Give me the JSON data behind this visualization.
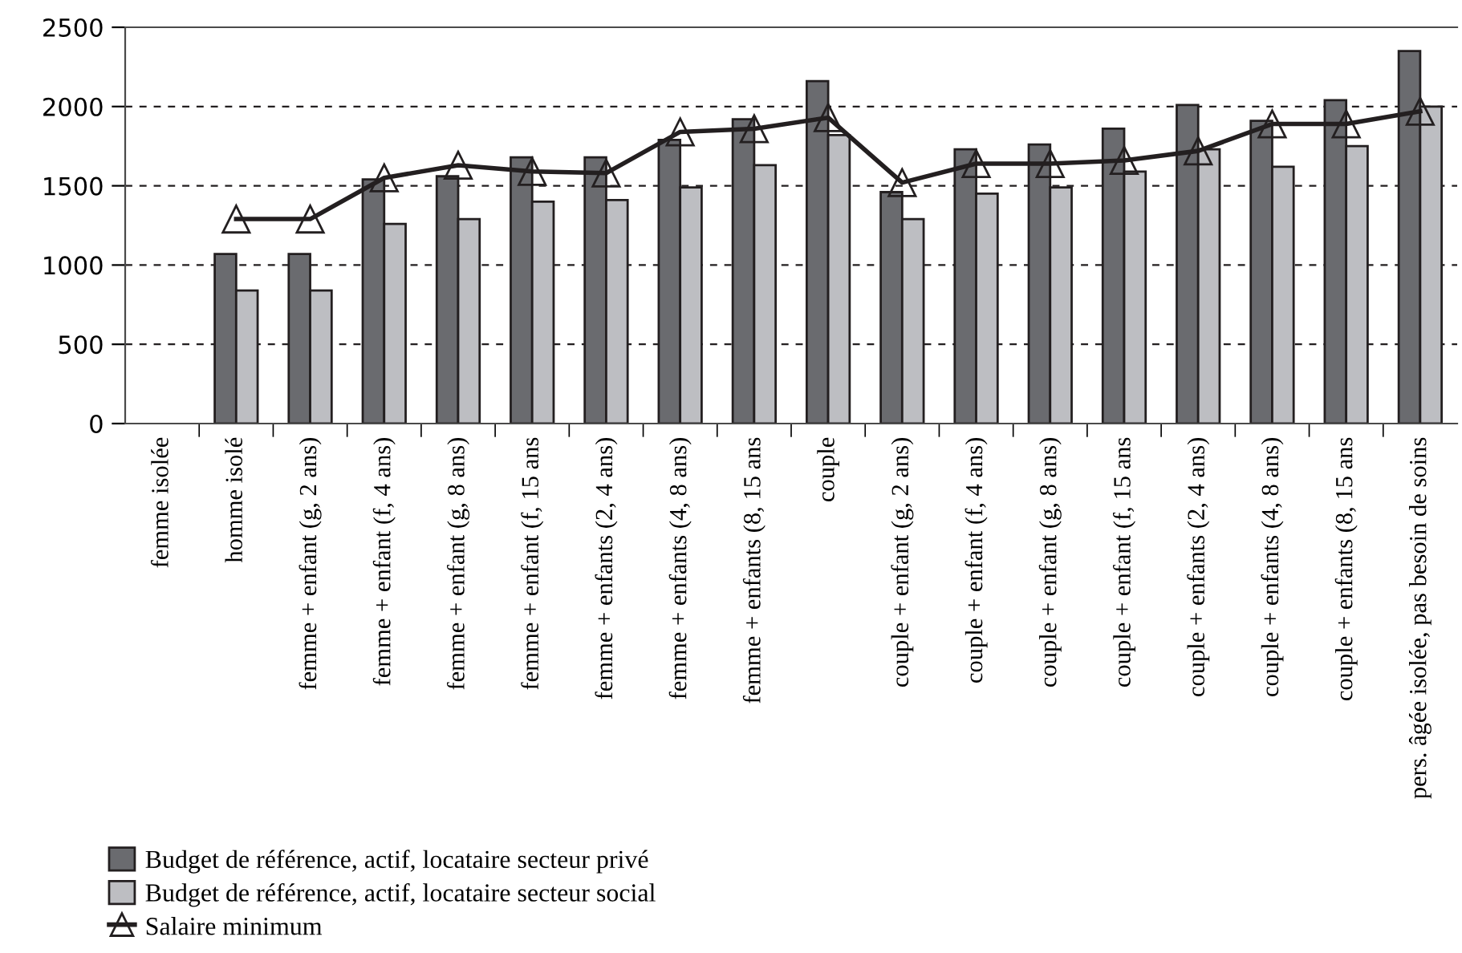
{
  "chart_data": {
    "type": "bar",
    "categories": [
      "femme isolée",
      "homme isolé",
      "femme + enfant (g, 2 ans)",
      "femme + enfant (f, 4 ans)",
      "femme + enfant (g, 8 ans)",
      "femme + enfant (f, 15 ans",
      "femme + enfants (2, 4 ans)",
      "femme + enfants (4, 8 ans)",
      "femme + enfants (8, 15 ans",
      "couple",
      "couple + enfant (g, 2 ans)",
      "couple + enfant (f, 4 ans)",
      "couple + enfant (g, 8 ans)",
      "couple + enfant (f, 15 ans",
      "couple + enfants (2, 4 ans)",
      "couple + enfants (4, 8 ans)",
      "couple + enfants (8, 15 ans",
      "pers. âgée isolée, pas besoin de soins"
    ],
    "series": [
      {
        "name": "Budget de référence, actif, locataire secteur privé",
        "color": "#6a6b6f",
        "values": [
          null,
          1070,
          1070,
          1540,
          1560,
          1680,
          1680,
          1790,
          1920,
          2160,
          1460,
          1730,
          1760,
          1860,
          2010,
          1910,
          2040,
          2350
        ]
      },
      {
        "name": "Budget de référence, actif, locataire secteur social",
        "color": "#bdbec2",
        "values": [
          null,
          840,
          840,
          1260,
          1290,
          1400,
          1410,
          1490,
          1630,
          1820,
          1290,
          1450,
          1490,
          1590,
          1730,
          1620,
          1750,
          2000
        ]
      },
      {
        "name": "Salaire minimum",
        "type": "line",
        "color": "#231f20",
        "marker": "triangle",
        "values": [
          null,
          1290,
          1290,
          1550,
          1630,
          1590,
          1580,
          1840,
          1860,
          1930,
          1520,
          1640,
          1640,
          1660,
          1720,
          1890,
          1890,
          1970
        ]
      }
    ],
    "ylim": [
      0,
      2500
    ],
    "yticks": [
      0,
      500,
      1000,
      1500,
      2000,
      2500
    ],
    "grid": "y",
    "legend": "bottom"
  }
}
